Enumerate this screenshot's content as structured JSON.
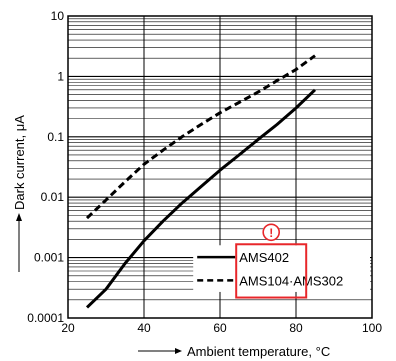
{
  "chart_data": {
    "type": "line",
    "x_label": "Ambient temperature, °C",
    "y_label": "Dark current, μA",
    "x_ticks": [
      "20",
      "40",
      "60",
      "80",
      "100"
    ],
    "y_ticks": [
      "0.0001",
      "0.001",
      "0.01",
      "0.1",
      "1",
      "10"
    ],
    "xlim": [
      20,
      100
    ],
    "ylim": [
      0.0001,
      10
    ],
    "y_scale": "log",
    "grid": true,
    "series": [
      {
        "name": "AMS402",
        "style": "solid",
        "x": [
          25,
          30,
          35,
          40,
          45,
          50,
          55,
          60,
          65,
          70,
          75,
          80,
          85
        ],
        "y": [
          0.00015,
          0.0003,
          0.0008,
          0.0019,
          0.004,
          0.008,
          0.015,
          0.028,
          0.05,
          0.09,
          0.16,
          0.3,
          0.6
        ]
      },
      {
        "name": "AMS104·AMS302",
        "style": "dashed",
        "x": [
          25,
          30,
          35,
          40,
          45,
          50,
          55,
          60,
          65,
          70,
          75,
          80,
          85
        ],
        "y": [
          0.0045,
          0.009,
          0.018,
          0.035,
          0.06,
          0.1,
          0.16,
          0.25,
          0.37,
          0.55,
          0.85,
          1.3,
          2.2
        ]
      }
    ],
    "legend": {
      "placement": "bottom-right",
      "entries": [
        "AMS402",
        "AMS104·AMS302"
      ]
    },
    "annotation": {
      "icon": "exclamation-circle-icon",
      "symbol": "!",
      "color": "#e8262a"
    }
  }
}
